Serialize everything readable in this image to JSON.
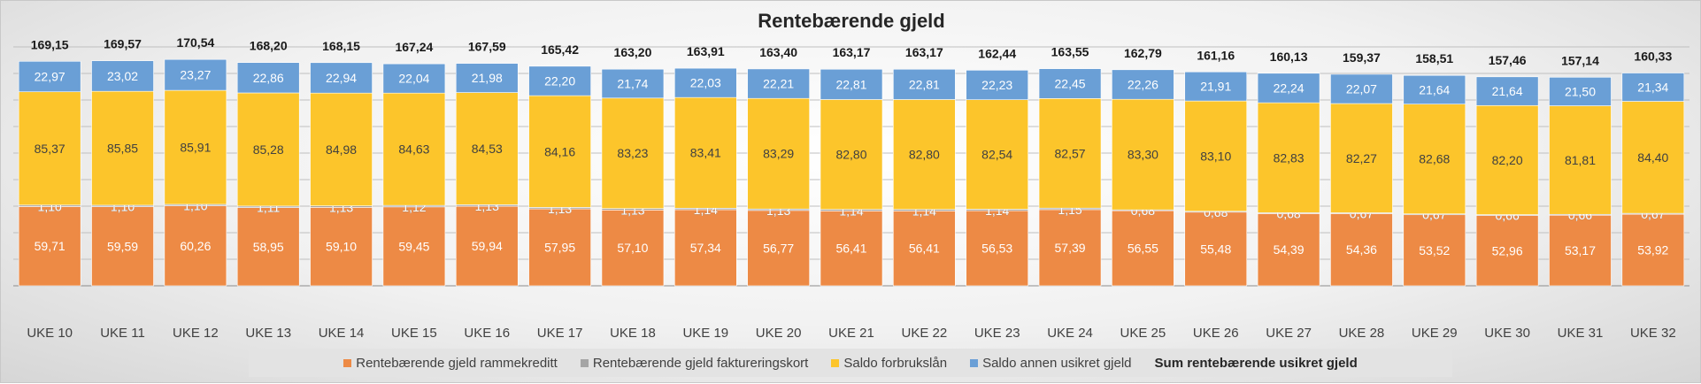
{
  "chart_data": {
    "type": "bar",
    "stacked": true,
    "title": "Rentebærende gjeld",
    "xlabel": "",
    "ylabel": "",
    "grid": true,
    "legend_position": "bottom",
    "categories": [
      "UKE 10",
      "UKE 11",
      "UKE 12",
      "UKE 13",
      "UKE 14",
      "UKE 15",
      "UKE 16",
      "UKE 17",
      "UKE 18",
      "UKE 19",
      "UKE 20",
      "UKE 21",
      "UKE 22",
      "UKE 23",
      "UKE 24",
      "UKE 25",
      "UKE 26",
      "UKE 27",
      "UKE 28",
      "UKE 29",
      "UKE 30",
      "UKE 31",
      "UKE 32"
    ],
    "series": [
      {
        "name": "Rentebærende gjeld rammekreditt",
        "color": "#ed8a45",
        "values": [
          59.71,
          59.59,
          60.26,
          58.95,
          59.1,
          59.45,
          59.94,
          57.95,
          57.1,
          57.34,
          56.77,
          56.41,
          56.41,
          56.53,
          57.39,
          56.55,
          55.48,
          54.39,
          54.36,
          53.52,
          52.96,
          53.17,
          53.92
        ],
        "labels": [
          "59,71",
          "59,59",
          "60,26",
          "58,95",
          "59,10",
          "59,45",
          "59,94",
          "57,95",
          "57,10",
          "57,34",
          "56,77",
          "56,41",
          "56,41",
          "56,53",
          "57,39",
          "56,55",
          "55,48",
          "54,39",
          "54,36",
          "53,52",
          "52,96",
          "53,17",
          "53,92"
        ]
      },
      {
        "name": "Rentebærende gjeld faktureringskort",
        "color": "#a5a5a5",
        "values": [
          1.1,
          1.1,
          1.1,
          1.11,
          1.13,
          1.12,
          1.13,
          1.13,
          1.13,
          1.14,
          1.13,
          1.14,
          1.14,
          1.14,
          1.15,
          0.68,
          0.68,
          0.68,
          0.67,
          0.67,
          0.66,
          0.66,
          0.67
        ],
        "labels": [
          "1,10",
          "1,10",
          "1,10",
          "1,11",
          "1,13",
          "1,12",
          "1,13",
          "1,13",
          "1,13",
          "1,14",
          "1,13",
          "1,14",
          "1,14",
          "1,14",
          "1,15",
          "0,68",
          "0,68",
          "0,68",
          "0,67",
          "0,67",
          "0,66",
          "0,66",
          "0,67"
        ]
      },
      {
        "name": "Saldo forbrukslån",
        "color": "#fcc52b",
        "values": [
          85.37,
          85.85,
          85.91,
          85.28,
          84.98,
          84.63,
          84.53,
          84.16,
          83.23,
          83.41,
          83.29,
          82.8,
          82.8,
          82.54,
          82.57,
          83.3,
          83.1,
          82.83,
          82.27,
          82.68,
          82.2,
          81.81,
          84.4
        ],
        "labels": [
          "85,37",
          "85,85",
          "85,91",
          "85,28",
          "84,98",
          "84,63",
          "84,53",
          "84,16",
          "83,23",
          "83,41",
          "83,29",
          "82,80",
          "82,80",
          "82,54",
          "82,57",
          "83,30",
          "83,10",
          "82,83",
          "82,27",
          "82,68",
          "82,20",
          "81,81",
          "84,40"
        ]
      },
      {
        "name": "Saldo annen usikret gjeld",
        "color": "#6a9fd6",
        "values": [
          22.97,
          23.02,
          23.27,
          22.86,
          22.94,
          22.04,
          21.98,
          22.2,
          21.74,
          22.03,
          22.21,
          22.81,
          22.81,
          22.23,
          22.45,
          22.26,
          21.91,
          22.24,
          22.07,
          21.64,
          21.64,
          21.5,
          21.34
        ],
        "labels": [
          "22,97",
          "23,02",
          "23,27",
          "22,86",
          "22,94",
          "22,04",
          "21,98",
          "22,20",
          "21,74",
          "22,03",
          "22,21",
          "22,81",
          "22,81",
          "22,23",
          "22,45",
          "22,26",
          "21,91",
          "22,24",
          "22,07",
          "21,64",
          "21,64",
          "21,50",
          "21,34"
        ]
      }
    ],
    "totals": {
      "name": "Sum rentebærende usikret gjeld",
      "values": [
        169.15,
        169.57,
        170.54,
        168.2,
        168.15,
        167.24,
        167.59,
        165.42,
        163.2,
        163.91,
        163.4,
        163.17,
        163.17,
        162.44,
        163.55,
        162.79,
        161.16,
        160.13,
        159.37,
        158.51,
        157.46,
        157.14,
        160.33
      ],
      "labels": [
        "169,15",
        "169,57",
        "170,54",
        "168,20",
        "168,15",
        "167,24",
        "167,59",
        "165,42",
        "163,20",
        "163,91",
        "163,40",
        "163,17",
        "163,17",
        "162,44",
        "163,55",
        "162,79",
        "161,16",
        "160,13",
        "159,37",
        "158,51",
        "157,46",
        "157,14",
        "160,33"
      ]
    },
    "ylim": [
      0,
      180
    ]
  }
}
